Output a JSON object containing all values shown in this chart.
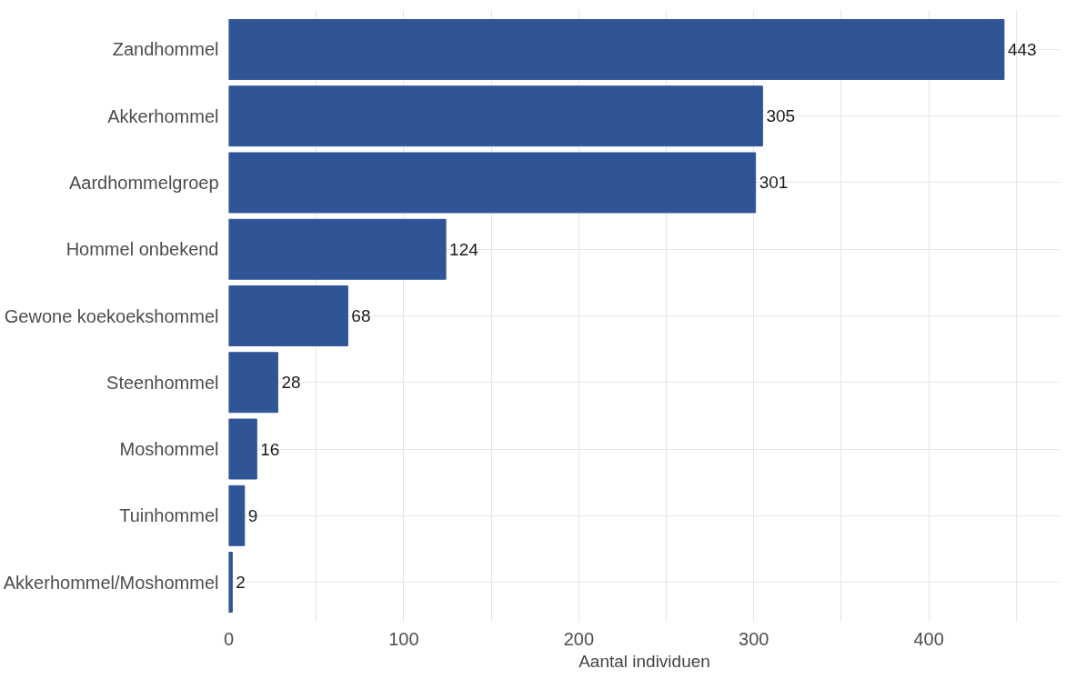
{
  "chart_data": {
    "type": "bar",
    "orientation": "horizontal",
    "xlabel": "Aantal individuen",
    "categories": [
      "Zandhommel",
      "Akkerhommel",
      "Aardhommelgroep",
      "Hommel onbekend",
      "Gewone koekoekshommel",
      "Steenhommel",
      "Moshommel",
      "Tuinhommel",
      "Akkerhommel/Moshommel"
    ],
    "values": [
      443,
      305,
      301,
      124,
      68,
      28,
      16,
      9,
      2
    ],
    "color": "#2f5597",
    "xlim": [
      0,
      475
    ],
    "xticks": [
      0,
      {
        "value": 50,
        "label": null
      },
      100,
      {
        "value": 150,
        "label": null
      },
      200,
      {
        "value": 250,
        "label": null
      },
      300,
      {
        "value": 350,
        "label": null
      },
      400,
      {
        "value": 450,
        "label": null
      }
    ],
    "grid": true,
    "data_labels": true
  }
}
